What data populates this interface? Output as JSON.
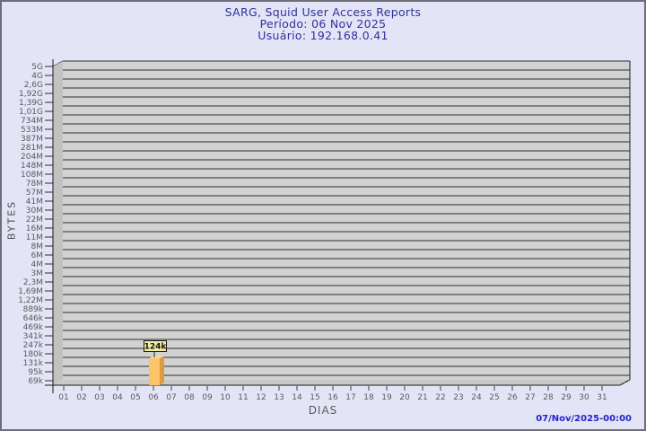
{
  "header": {
    "title": "SARG, Squid User Access Reports",
    "period": "Período: 06 Nov 2025",
    "user": "Usuário: 192.168.0.41"
  },
  "footer": {
    "timestamp": "07/Nov/2025-00:00"
  },
  "chart_data": {
    "type": "bar",
    "title": "SARG, Squid User Access Reports",
    "subtitle": [
      "Período: 06 Nov 2025",
      "Usuário: 192.168.0.41"
    ],
    "xlabel": "DIAS",
    "ylabel": "BYTES",
    "y_scale": "non-linear (log-like)",
    "grid": "horizontal lines on, 3D wall/floor effect",
    "y_axis_labels": [
      "5G",
      "4G",
      "2,6G",
      "1,92G",
      "1,39G",
      "1,01G",
      "734M",
      "533M",
      "387M",
      "281M",
      "204M",
      "148M",
      "108M",
      "78M",
      "57M",
      "41M",
      "30M",
      "22M",
      "16M",
      "11M",
      "8M",
      "6M",
      "4M",
      "3M",
      "2,3M",
      "1,69M",
      "1,22M",
      "889k",
      "646k",
      "469k",
      "341k",
      "247k",
      "180k",
      "131k",
      "95k",
      "69k"
    ],
    "x_categories": [
      "01",
      "02",
      "03",
      "04",
      "05",
      "06",
      "07",
      "08",
      "09",
      "10",
      "11",
      "12",
      "13",
      "14",
      "15",
      "16",
      "17",
      "18",
      "19",
      "20",
      "21",
      "22",
      "23",
      "24",
      "25",
      "26",
      "27",
      "28",
      "29",
      "30",
      "31"
    ],
    "bars": [
      {
        "day": "06",
        "value_label": "124k"
      }
    ],
    "colors": {
      "page_bg": "#e4e4f7",
      "page_border": "#6f6f7a",
      "title_text": "#30309c",
      "timestamp_text": "#2424cc",
      "plot_bg": "#d2d2d2",
      "wall": "#c2c2c2",
      "floor": "#c9c9c9",
      "gridline": "#2d2d2d",
      "tick_text": "#5a5a5a",
      "bar_front": "#fcc369",
      "bar_side": "#dd9c41",
      "bar_top": "#f8da9a",
      "value_label_bg": "#f4eda4",
      "value_label_border": "#1a1a1a"
    }
  }
}
